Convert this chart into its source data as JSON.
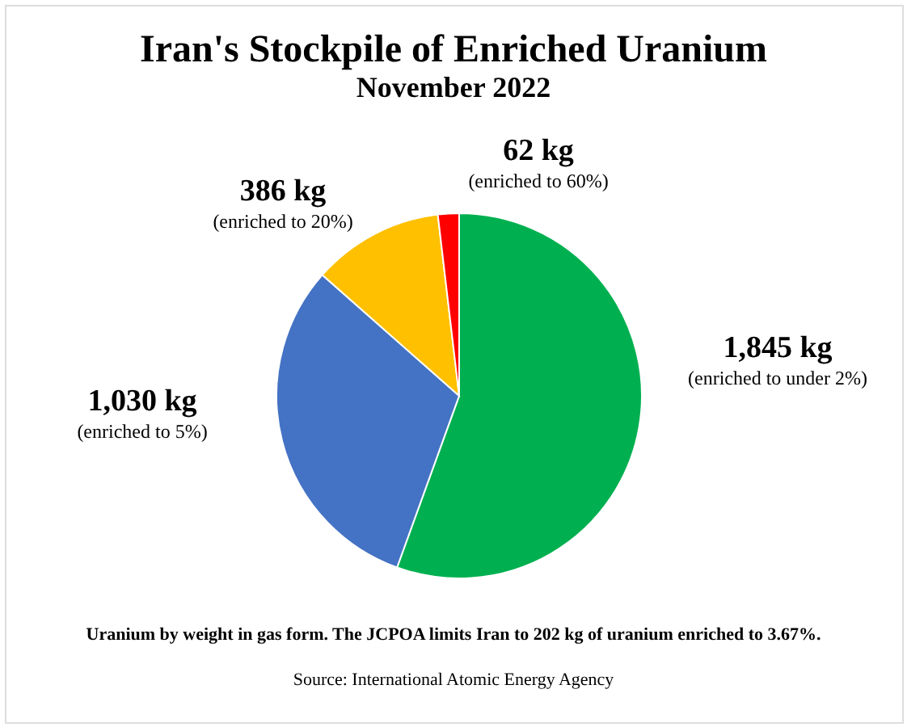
{
  "chart_data": {
    "type": "pie",
    "title": "Iran's Stockpile of Enriched Uranium",
    "subtitle": "November 2022",
    "categories": [
      "(enriched to under 2%)",
      "(enriched to  5%)",
      "(enriched to 20%)",
      "(enriched to 60%)"
    ],
    "values": [
      1845,
      1030,
      386,
      62
    ],
    "value_labels": [
      "1,845 kg",
      "1,030 kg",
      "386 kg",
      "62 kg"
    ],
    "colors": [
      "#00b050",
      "#4472c4",
      "#ffc000",
      "#ff0000"
    ],
    "annotations": [
      "Uranium by weight in gas form. The JCPOA limits Iran to 202 kg of uranium enriched to 3.67%.",
      "Source: International Atomic Energy Agency"
    ]
  }
}
